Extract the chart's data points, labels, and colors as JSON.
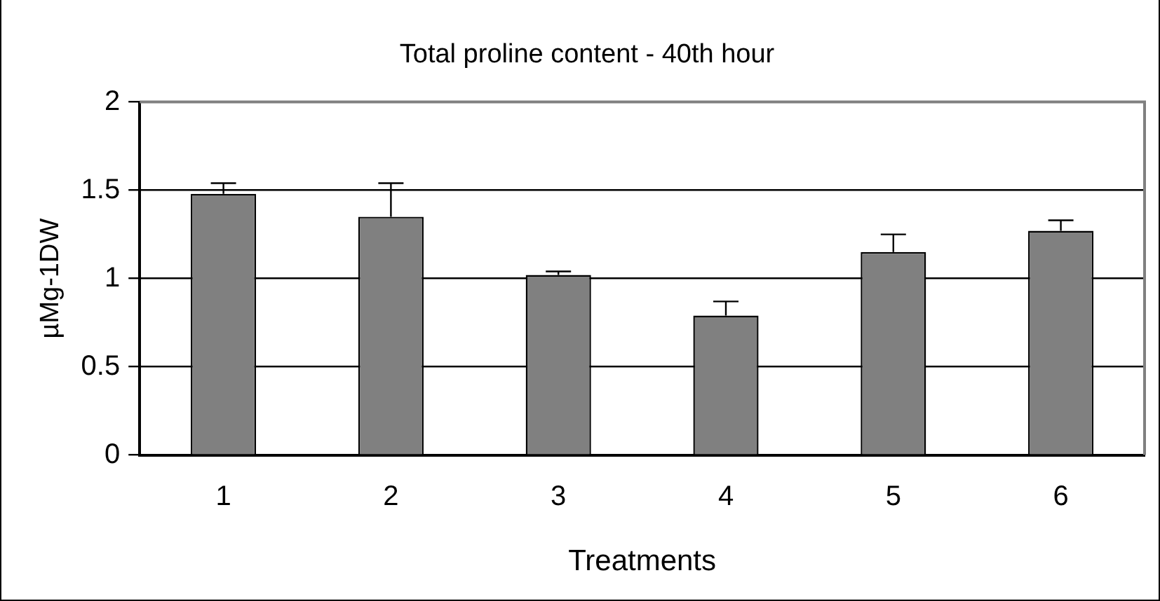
{
  "chart_data": {
    "type": "bar",
    "title": "Total proline content - 40th hour",
    "xlabel": "Treatments",
    "ylabel": "µMg-1DW",
    "categories": [
      "1",
      "2",
      "3",
      "4",
      "5",
      "6"
    ],
    "values": [
      1.48,
      1.35,
      1.02,
      0.79,
      1.15,
      1.27
    ],
    "errors": [
      [
        1.48,
        1.54
      ],
      [
        1.35,
        1.54
      ],
      [
        1.02,
        1.04
      ],
      [
        0.79,
        0.87
      ],
      [
        1.15,
        1.25
      ],
      [
        1.27,
        1.33
      ]
    ],
    "color": "#808080",
    "ylim": [
      0,
      2
    ],
    "yticks": [
      0,
      0.5,
      1,
      1.5,
      2
    ],
    "grid": "y",
    "legend": false
  }
}
